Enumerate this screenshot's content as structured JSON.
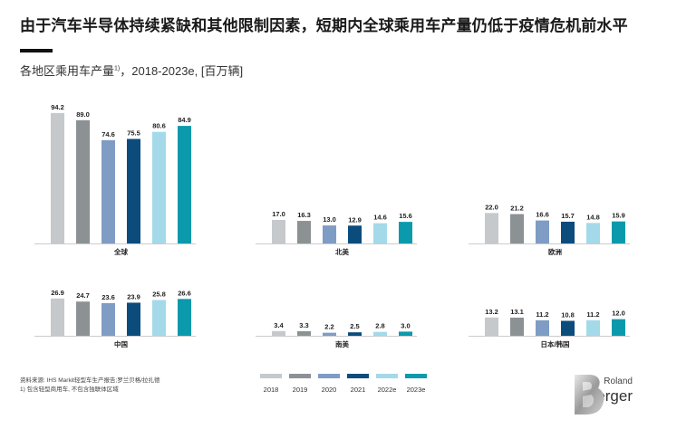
{
  "title": "由于汽车半导体持续紧缺和其他限制因素，短期内全球乘用车产量仍低于疫情危机前水平",
  "subtitle_main": "各地区乘用车产量",
  "subtitle_note": "1)",
  "subtitle_rest": "，2018-2023e, [百万辆]",
  "colors": [
    "#c6c9cc",
    "#8c9194",
    "#7f9cc4",
    "#0b4c7c",
    "#a4d9ea",
    "#0a9aab"
  ],
  "chart_data": {
    "type": "bar",
    "title": "各地区乘用车产量，2018-2023e, [百万辆]",
    "categories": [
      "2018",
      "2019",
      "2020",
      "2021",
      "2022e",
      "2023e"
    ],
    "series": [
      {
        "name": "全球",
        "values": [
          94.2,
          89.0,
          74.6,
          75.5,
          80.6,
          84.9
        ]
      },
      {
        "name": "北美",
        "values": [
          17.0,
          16.3,
          13.0,
          12.9,
          14.6,
          15.6
        ]
      },
      {
        "name": "欧洲",
        "values": [
          22.0,
          21.2,
          16.6,
          15.7,
          14.8,
          15.9
        ]
      },
      {
        "name": "中国",
        "values": [
          26.9,
          24.7,
          23.6,
          23.9,
          25.8,
          26.6
        ]
      },
      {
        "name": "南美",
        "values": [
          3.4,
          3.3,
          2.2,
          2.5,
          2.8,
          3.0
        ]
      },
      {
        "name": "日本/韩国",
        "values": [
          13.2,
          13.1,
          11.2,
          10.8,
          11.2,
          12.0
        ]
      }
    ],
    "labels": [
      [
        "94.2",
        "89.0",
        "74.6",
        "75.5",
        "80.6",
        "84.9"
      ],
      [
        "17.0",
        "16.3",
        "13.0",
        "12.9",
        "14.6",
        "15.6"
      ],
      [
        "22.0",
        "21.2",
        "16.6",
        "15.7",
        "14.8",
        "15.9"
      ],
      [
        "26.9",
        "24.7",
        "23.6",
        "23.9",
        "25.8",
        "26.6"
      ],
      [
        "3.4",
        "3.3",
        "2.2",
        "2.5",
        "2.8",
        "3.0"
      ],
      [
        "13.2",
        "13.1",
        "11.2",
        "10.8",
        "11.2",
        "12.0"
      ]
    ],
    "xlabel": "",
    "ylabel": "百万辆",
    "ylim": [
      0,
      100
    ]
  },
  "source_line1": "资料来源: IHS Markit轻型车生产报告;罗兰贝格/拉扎德",
  "source_line2": "1) 包含轻型商用车, 不包含独联体区域",
  "logo": {
    "line1": "Roland",
    "line2": "Berger"
  }
}
